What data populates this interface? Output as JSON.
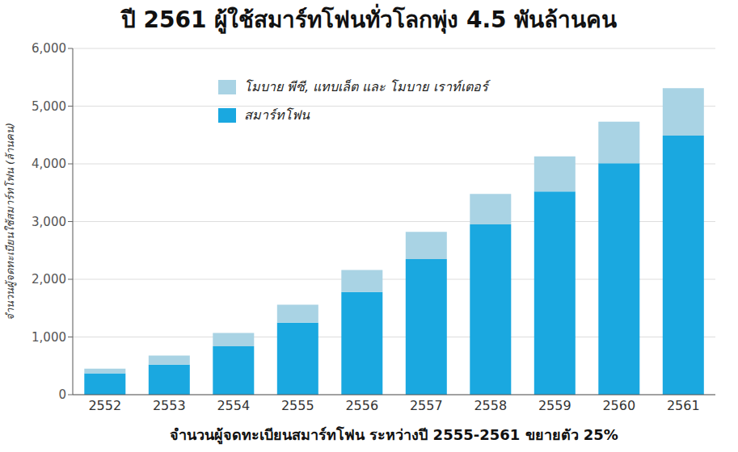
{
  "chart_data": {
    "type": "bar",
    "title": "ปี 2561 ผู้ใช้สมาร์ทโฟนทั่วโลกพุ่ง 4.5 พันล้านคน",
    "x_label": "จำนวนผู้จดทะเบียนสมาร์ทโฟน ระหว่างปี 2555-2561 ขยายตัว 25%",
    "y_label": "จำนวนผู้จดทะเบียนใช้สมาร์ทโฟน (ล้านคน)",
    "categories": [
      "2552",
      "2553",
      "2554",
      "2555",
      "2556",
      "2557",
      "2558",
      "2559",
      "2560",
      "2561"
    ],
    "series": [
      {
        "name": "สมาร์ทโฟน",
        "color": "#1aa8e0",
        "values": [
          370,
          520,
          840,
          1250,
          1780,
          2350,
          2950,
          3520,
          4010,
          4490
        ]
      },
      {
        "name": "โมบาย พีซี, แทบเล็ต และ โมบาย เราท์เตอร์",
        "color": "#a9d3e4",
        "values": [
          80,
          160,
          230,
          310,
          380,
          470,
          530,
          610,
          720,
          820
        ]
      }
    ],
    "stacked": true,
    "ylim": [
      0,
      6000
    ],
    "yticks": [
      0,
      {
        "value": 1000,
        "label": "1,000"
      },
      {
        "value": 2000,
        "label": "2,000"
      },
      {
        "value": 3000,
        "label": "3,000"
      },
      {
        "value": 4000,
        "label": "4,000"
      },
      {
        "value": 5000,
        "label": "5,000"
      },
      {
        "value": 6000,
        "label": "6,000"
      }
    ],
    "grid": true,
    "legend": "top-left"
  }
}
